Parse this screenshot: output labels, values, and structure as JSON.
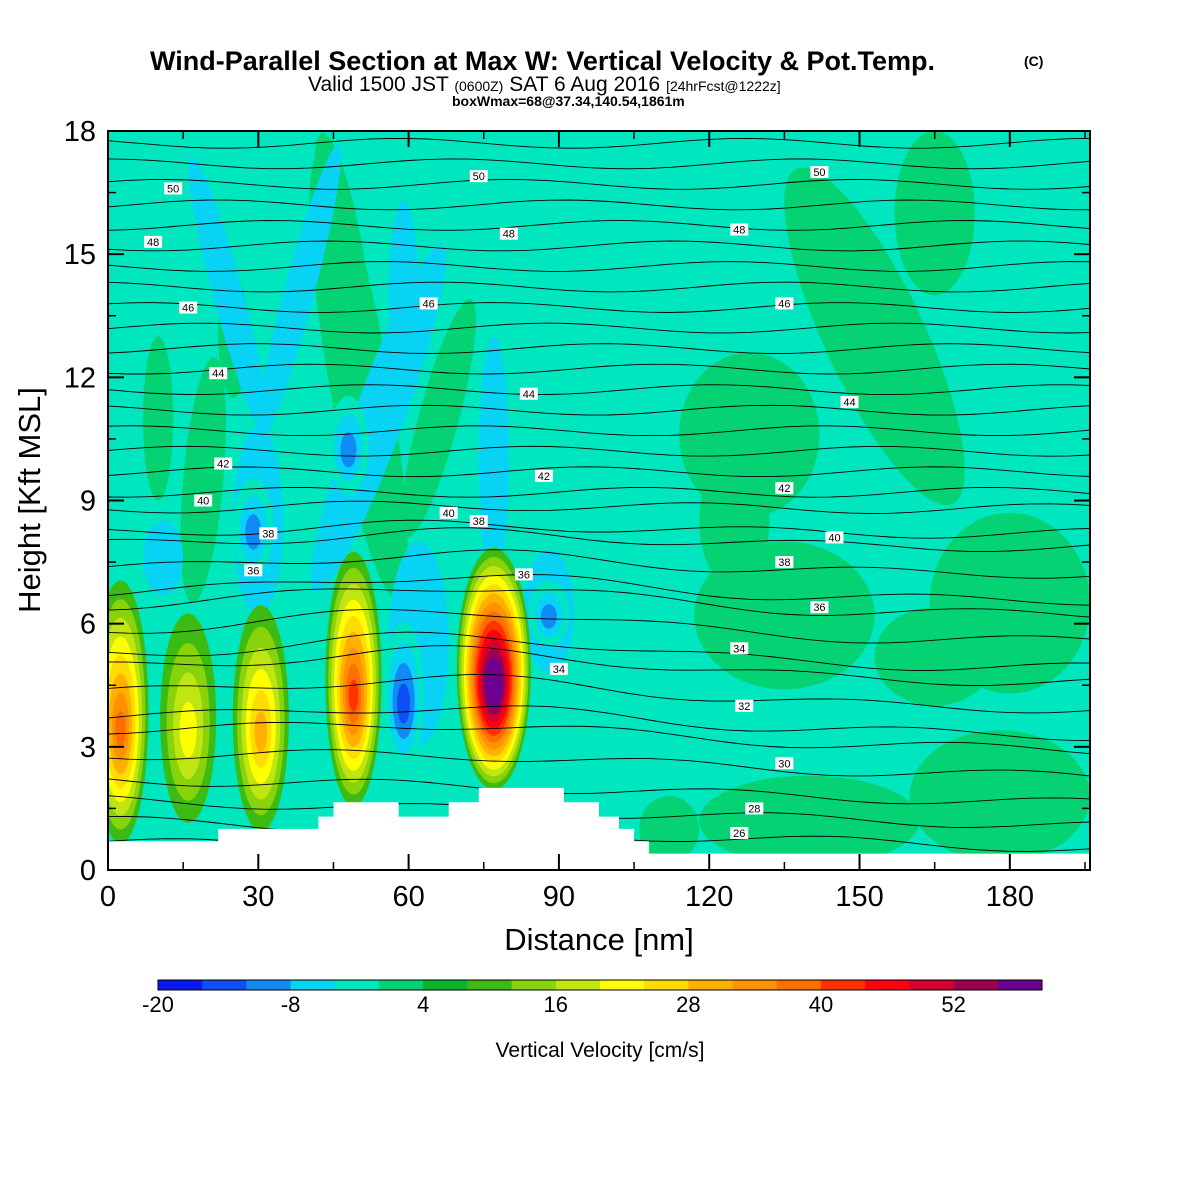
{
  "title": {
    "line1_main": "Wind-Parallel Section at Max W: Vertical Velocity & Pot.Temp.",
    "line1_sup": "(C)",
    "line2_a": "Valid 1500 JST",
    "line2_b": "(0600Z)",
    "line2_c": "SAT 6 Aug 2016",
    "line2_d": "[24hrFcst@1222z]",
    "line3": "boxWmax=68@37.34,140.54,1861m"
  },
  "colors": {
    "background_field": "#00e6bf",
    "terrain": "#ffffff",
    "contour": "#000000"
  },
  "chart_data": {
    "type": "heatmap",
    "xlabel": "Distance [nm]",
    "ylabel": "Height [Kft MSL]",
    "xlim": [
      0,
      196
    ],
    "ylim": [
      0,
      18
    ],
    "xticks": [
      "0",
      "30",
      "60",
      "90",
      "120",
      "150",
      "180"
    ],
    "yticks": [
      "0",
      "3",
      "6",
      "9",
      "12",
      "15",
      "18"
    ],
    "colorbar": {
      "label": "Vertical Velocity [cm/s]",
      "tick_labels": [
        "-20",
        "-8",
        "4",
        "16",
        "28",
        "40",
        "52"
      ],
      "colors": [
        "#0a19f0",
        "#0d4ff2",
        "#128af5",
        "#08d3f5",
        "#00e6bf",
        "#05d273",
        "#08b42c",
        "#3cbc12",
        "#89d30d",
        "#c0e612",
        "#ffff00",
        "#ffdc00",
        "#ffb000",
        "#ff9200",
        "#ff6e00",
        "#ff3200",
        "#ff0010",
        "#d4002e",
        "#9e0050",
        "#6e0090"
      ]
    },
    "updraft_cores": [
      {
        "x": 2.5,
        "ymin": 0.7,
        "ymax": 7.0,
        "peak": 34
      },
      {
        "x": 16,
        "ymin": 1.2,
        "ymax": 6.2,
        "peak": 18
      },
      {
        "x": 30.5,
        "ymin": 1.0,
        "ymax": 6.4,
        "peak": 26
      },
      {
        "x": 49,
        "ymin": 1.6,
        "ymax": 7.7,
        "peak": 38
      },
      {
        "x": 77,
        "ymin": 2.0,
        "ymax": 7.8,
        "peak": 60
      }
    ],
    "downdraft_cores": [
      {
        "x": 59,
        "ymin": 2.5,
        "ymax": 6.0,
        "min": -16
      },
      {
        "x": 88,
        "ymin": 5.5,
        "ymax": 7.0,
        "min": -14
      },
      {
        "x": 29,
        "ymin": 7.2,
        "ymax": 9.5,
        "min": -14
      },
      {
        "x": 48,
        "ymin": 9.2,
        "ymax": 11.5,
        "min": -12
      }
    ],
    "theta_contour_labels": [
      {
        "x": 13,
        "y": 16.6,
        "text": "50"
      },
      {
        "x": 74,
        "y": 16.9,
        "text": "50"
      },
      {
        "x": 142,
        "y": 17.0,
        "text": "50"
      },
      {
        "x": 9,
        "y": 15.3,
        "text": "48"
      },
      {
        "x": 80,
        "y": 15.5,
        "text": "48"
      },
      {
        "x": 126,
        "y": 15.6,
        "text": "48"
      },
      {
        "x": 16,
        "y": 13.7,
        "text": "46"
      },
      {
        "x": 64,
        "y": 13.8,
        "text": "46"
      },
      {
        "x": 135,
        "y": 13.8,
        "text": "46"
      },
      {
        "x": 22,
        "y": 12.1,
        "text": "44"
      },
      {
        "x": 84,
        "y": 11.6,
        "text": "44"
      },
      {
        "x": 148,
        "y": 11.4,
        "text": "44"
      },
      {
        "x": 23,
        "y": 9.9,
        "text": "42"
      },
      {
        "x": 87,
        "y": 9.6,
        "text": "42"
      },
      {
        "x": 135,
        "y": 9.3,
        "text": "42"
      },
      {
        "x": 19,
        "y": 9.0,
        "text": "40"
      },
      {
        "x": 68,
        "y": 8.7,
        "text": "40"
      },
      {
        "x": 145,
        "y": 8.1,
        "text": "40"
      },
      {
        "x": 32,
        "y": 8.2,
        "text": "38"
      },
      {
        "x": 74,
        "y": 8.5,
        "text": "38"
      },
      {
        "x": 135,
        "y": 7.5,
        "text": "38"
      },
      {
        "x": 29,
        "y": 7.3,
        "text": "36"
      },
      {
        "x": 83,
        "y": 7.2,
        "text": "36"
      },
      {
        "x": 142,
        "y": 6.4,
        "text": "36"
      },
      {
        "x": 90,
        "y": 4.9,
        "text": "34"
      },
      {
        "x": 126,
        "y": 5.4,
        "text": "34"
      },
      {
        "x": 127,
        "y": 4.0,
        "text": "32"
      },
      {
        "x": 135,
        "y": 2.6,
        "text": "30"
      },
      {
        "x": 129,
        "y": 1.5,
        "text": "28"
      },
      {
        "x": 126,
        "y": 0.9,
        "text": "26"
      }
    ]
  }
}
